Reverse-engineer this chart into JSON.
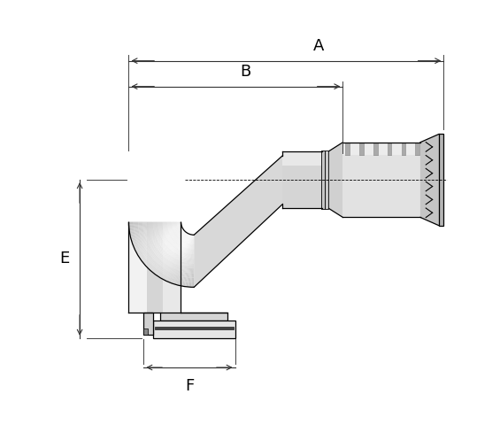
{
  "bg_color": "#ffffff",
  "line_color": "#000000",
  "fill_light": "#e8e8e8",
  "fill_mid": "#d0d0d0",
  "fill_dark": "#b0b0b0",
  "fill_white": "#f5f5f5",
  "dim_color": "#000000",
  "label_A": "A",
  "label_B": "B",
  "label_E": "E",
  "label_F": "F",
  "figsize": [
    5.65,
    4.8
  ],
  "dpi": 100
}
